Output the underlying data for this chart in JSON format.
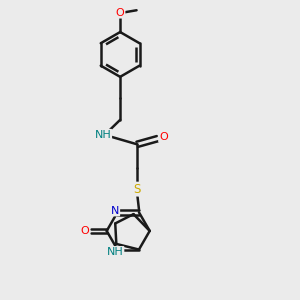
{
  "background_color": "#ebebeb",
  "bond_color": "#1a1a1a",
  "bond_lw": 1.8,
  "heteroatom_colors": {
    "O": "#ff0000",
    "N": "#0000cc",
    "S": "#ccaa00",
    "NH": "#008080"
  },
  "figsize": [
    3.0,
    3.0
  ],
  "dpi": 100
}
